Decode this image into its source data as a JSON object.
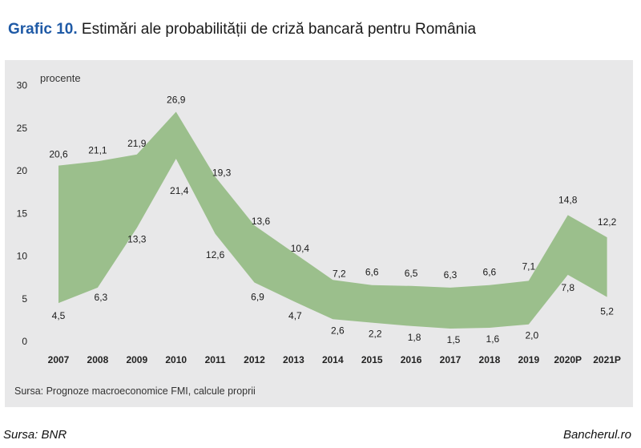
{
  "header": {
    "prefix": "Grafic 10.",
    "title": "Estimări ale probabilității de criză bancară pentru România"
  },
  "source_note": "Sursa: Prognoze macroeconomice FMI, calcule proprii",
  "footer": {
    "left": "Sursa: BNR",
    "right": "Bancherul.ro"
  },
  "colors": {
    "band_fill": "#9bbf8c",
    "panel_bg": "#e8e8e9",
    "title_accent": "#1f5aa6"
  },
  "chart_data": {
    "type": "area",
    "unit_label": "procente",
    "categories": [
      "2007",
      "2008",
      "2009",
      "2010",
      "2011",
      "2012",
      "2013",
      "2014",
      "2015",
      "2016",
      "2017",
      "2018",
      "2019",
      "2020P",
      "2021P"
    ],
    "series": [
      {
        "values": [
          20.6,
          21.1,
          21.9,
          26.9,
          19.3,
          13.6,
          10.4,
          7.2,
          6.6,
          6.5,
          6.3,
          6.6,
          7.1,
          14.8,
          12.2
        ]
      },
      {
        "values": [
          4.5,
          6.3,
          13.3,
          21.4,
          12.6,
          6.9,
          4.7,
          2.6,
          2.2,
          1.8,
          1.5,
          1.6,
          2.0,
          7.8,
          5.2
        ]
      }
    ],
    "data_labels_upper": [
      "20,6",
      "21,1",
      "21,9",
      "26,9",
      "19,3",
      "13,6",
      "10,4",
      "7,2",
      "6,6",
      "6,5",
      "6,3",
      "6,6",
      "7,1",
      "14,8",
      "12,2"
    ],
    "data_labels_lower": [
      "4,5",
      "6,3",
      "13,3",
      "21,4",
      "12,6",
      "6,9",
      "4,7",
      "2,6",
      "2,2",
      "1,8",
      "1,5",
      "1,6",
      "2,0",
      "7,8",
      "5,2"
    ],
    "y_ticks": [
      0,
      5,
      10,
      15,
      20,
      25,
      30
    ],
    "ylim": [
      0,
      30
    ],
    "grid": false
  }
}
